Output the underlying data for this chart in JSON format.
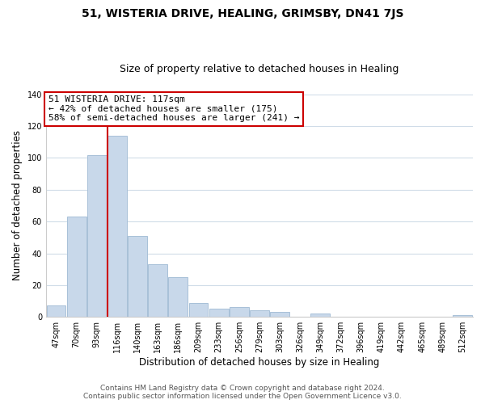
{
  "title": "51, WISTERIA DRIVE, HEALING, GRIMSBY, DN41 7JS",
  "subtitle": "Size of property relative to detached houses in Healing",
  "xlabel": "Distribution of detached houses by size in Healing",
  "ylabel": "Number of detached properties",
  "bar_labels": [
    "47sqm",
    "70sqm",
    "93sqm",
    "116sqm",
    "140sqm",
    "163sqm",
    "186sqm",
    "209sqm",
    "233sqm",
    "256sqm",
    "279sqm",
    "303sqm",
    "326sqm",
    "349sqm",
    "372sqm",
    "396sqm",
    "419sqm",
    "442sqm",
    "465sqm",
    "489sqm",
    "512sqm"
  ],
  "bar_values": [
    7,
    63,
    102,
    114,
    51,
    33,
    25,
    9,
    5,
    6,
    4,
    3,
    0,
    2,
    0,
    0,
    0,
    0,
    0,
    0,
    1
  ],
  "bar_color": "#c8d8ea",
  "bar_edge_color": "#a8c0d8",
  "highlight_line_color": "#cc0000",
  "vline_x_index": 3,
  "annotation_title": "51 WISTERIA DRIVE: 117sqm",
  "annotation_line1": "← 42% of detached houses are smaller (175)",
  "annotation_line2": "58% of semi-detached houses are larger (241) →",
  "annotation_box_color": "#ffffff",
  "annotation_box_edge": "#cc0000",
  "ylim": [
    0,
    140
  ],
  "yticks": [
    0,
    20,
    40,
    60,
    80,
    100,
    120,
    140
  ],
  "footer1": "Contains HM Land Registry data © Crown copyright and database right 2024.",
  "footer2": "Contains public sector information licensed under the Open Government Licence v3.0.",
  "bg_color": "#ffffff",
  "grid_color": "#d0dce8",
  "title_fontsize": 10,
  "subtitle_fontsize": 9,
  "axis_label_fontsize": 8.5,
  "tick_fontsize": 7,
  "footer_fontsize": 6.5,
  "annotation_fontsize": 8
}
